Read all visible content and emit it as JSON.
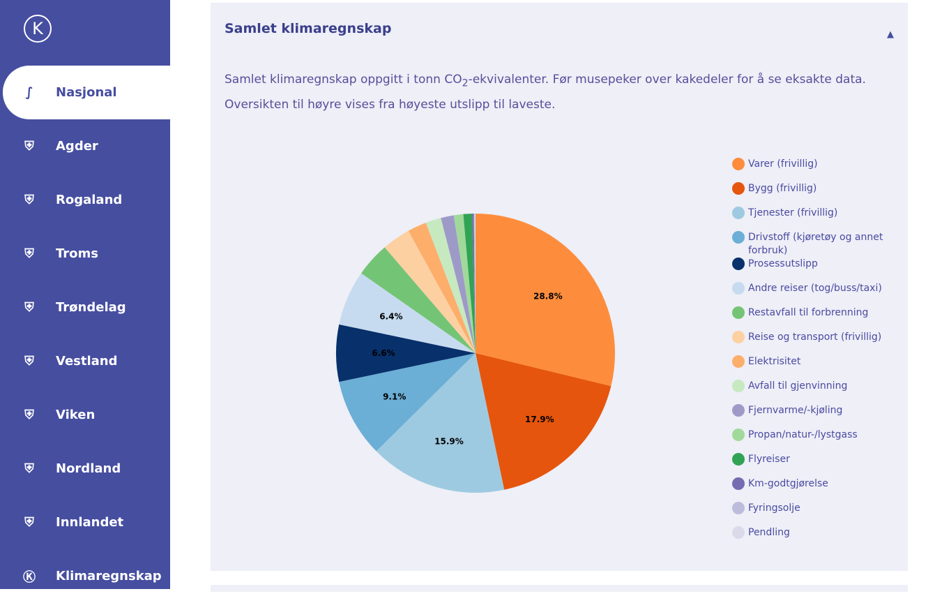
{
  "sidebar": {
    "logo": "K",
    "items": [
      {
        "label": "Nasjonal",
        "icon": "norway-map-icon",
        "glyph": "∫",
        "active": true
      },
      {
        "label": "Agder",
        "icon": "agder-shield-icon",
        "glyph": "⛨"
      },
      {
        "label": "Rogaland",
        "icon": "rogaland-shield-icon",
        "glyph": "⛨"
      },
      {
        "label": "Troms",
        "icon": "troms-shield-icon",
        "glyph": "⛨"
      },
      {
        "label": "Trøndelag",
        "icon": "trondelag-shield-icon",
        "glyph": "⛨"
      },
      {
        "label": "Vestland",
        "icon": "vestland-shield-icon",
        "glyph": "⛨"
      },
      {
        "label": "Viken",
        "icon": "viken-shield-icon",
        "glyph": "⛨"
      },
      {
        "label": "Nordland",
        "icon": "nordland-shield-icon",
        "glyph": "⛨"
      },
      {
        "label": "Innlandet",
        "icon": "innlandet-shield-icon",
        "glyph": "⛨"
      },
      {
        "label": "Klimaregnskap",
        "icon": "klimaregnskap-logo-icon",
        "glyph": "Ⓚ"
      }
    ]
  },
  "panel": {
    "title": "Samlet klimaregnskap",
    "toggle": "▲",
    "desc_a": "Samlet klimaregnskap oppgitt i tonn CO",
    "desc_sub": "2",
    "desc_b": "-ekvivalenter. Før musepeker over kakedeler for å se eksakte data. Oversikten til høyre vises fra høyeste utslipp til laveste."
  },
  "chart_data": {
    "type": "pie",
    "unit": "percent",
    "legend_position": "right",
    "categories": [
      "Varer (frivillig)",
      "Bygg (frivillig)",
      "Tjenester (frivillig)",
      "Drivstoff (kjøretøy og annet forbruk)",
      "Prosessutslipp",
      "Andre reiser (tog/buss/taxi)",
      "Restavfall til forbrenning",
      "Reise og transport (frivillig)",
      "Elektrisitet",
      "Avfall til gjenvinning",
      "Fjernvarme/-kjøling",
      "Propan/natur-/lystgass",
      "Flyreiser",
      "Km-godtgjørelse",
      "Fyringsolje",
      "Pendling"
    ],
    "values": [
      28.8,
      17.9,
      15.9,
      9.1,
      6.6,
      6.4,
      4.0,
      3.3,
      2.2,
      1.8,
      1.5,
      1.1,
      1.0,
      0.2,
      0.1,
      0.1
    ],
    "labels": [
      "28.8%",
      "17.9%",
      "15.9%",
      "9.1%",
      "6.6%",
      "6.4%"
    ],
    "colors": [
      "#fd8d3c",
      "#e6550d",
      "#9ecae1",
      "#6baed6",
      "#08306b",
      "#c6dbef",
      "#74c476",
      "#fdd0a2",
      "#fdae6b",
      "#c7e9c0",
      "#9e9ac8",
      "#a1d99b",
      "#31a354",
      "#756bb1",
      "#bcbddc",
      "#dadaeb"
    ]
  }
}
